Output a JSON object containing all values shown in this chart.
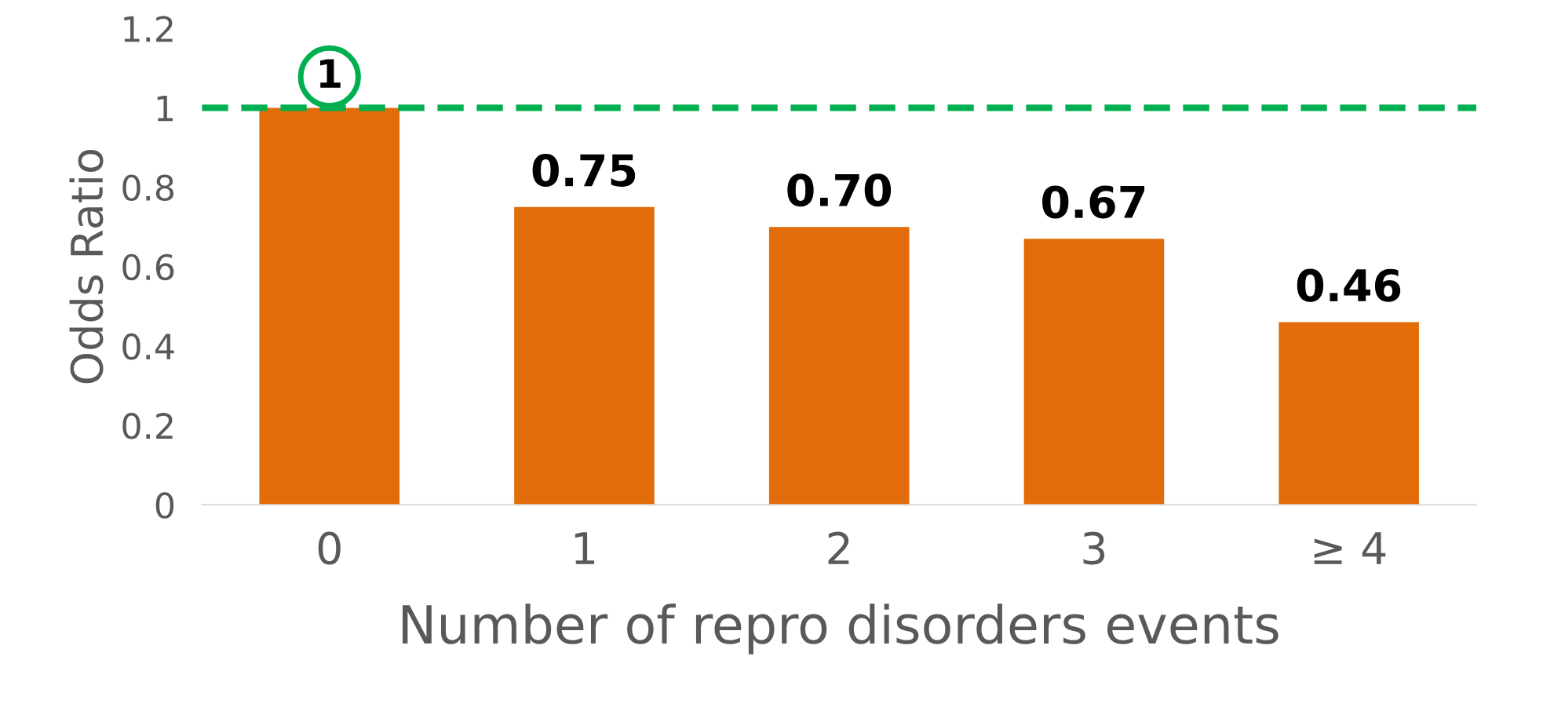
{
  "chart_data": {
    "type": "bar",
    "xlabel": "Number of repro disorders events",
    "ylabel": "Odds Ratio",
    "categories": [
      "0",
      "1",
      "2",
      "3",
      "≥ 4"
    ],
    "values": [
      1,
      0.75,
      0.7,
      0.67,
      0.46
    ],
    "value_labels": [
      "1",
      "0.75",
      "0.70",
      "0.67",
      "0.46"
    ],
    "color": "#e36c0a",
    "ylim": [
      0,
      1.2
    ],
    "yticks": [
      0,
      0.2,
      0.4,
      0.6,
      0.8,
      1,
      1.2
    ],
    "ref_lines": [
      {
        "axis": "y",
        "value": 1,
        "color": "#00b050",
        "line_style": "dashed"
      }
    ],
    "grid": false
  }
}
